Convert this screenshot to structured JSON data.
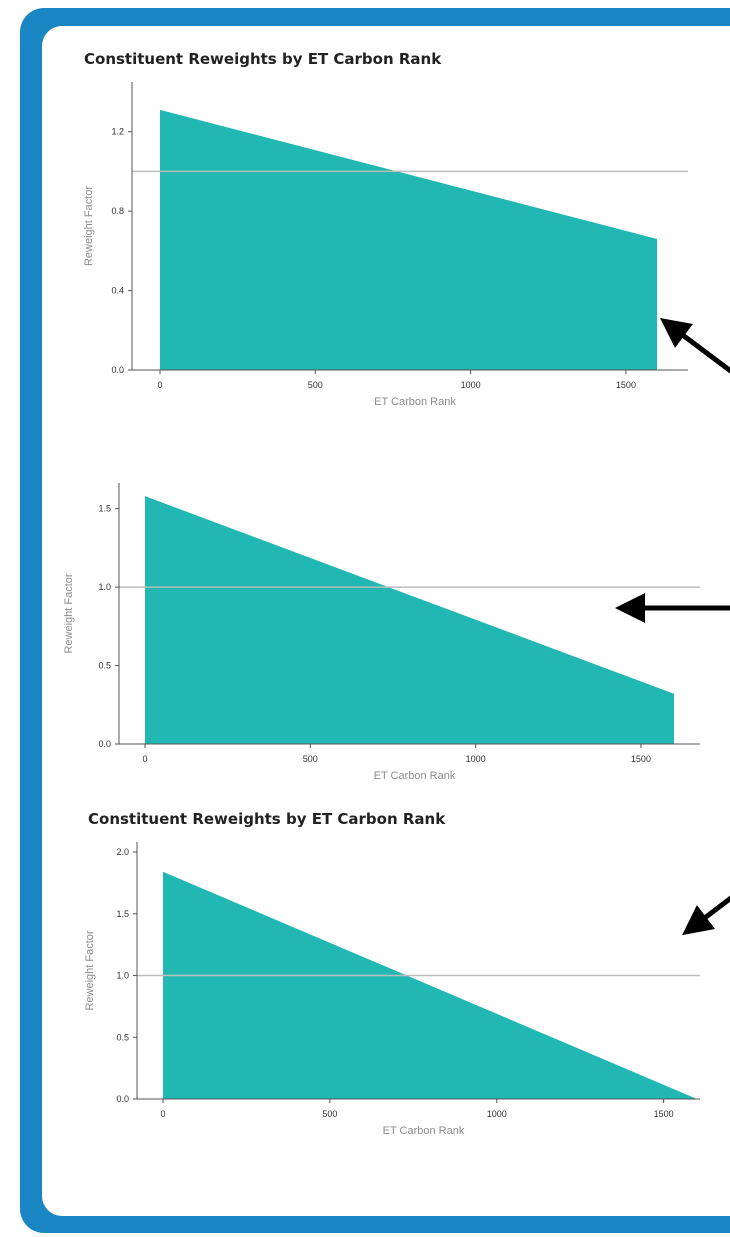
{
  "colors": {
    "frame": "#1a86c4",
    "area": "#21b8b3",
    "refline": "#bdbdbd",
    "axis": "#555555",
    "arrow": "#000000"
  },
  "chart_data": [
    {
      "type": "area",
      "title": "Constituent Reweights by ET Carbon Rank",
      "xlabel": "ET Carbon Rank",
      "ylabel": "Reweight Factor",
      "xlim": [
        0,
        1600
      ],
      "ylim": [
        0,
        1.4
      ],
      "xticks": [
        "0",
        "500",
        "1000",
        "1500"
      ],
      "yticks": [
        "0.0",
        "0.4",
        "0.8",
        "1.2"
      ],
      "x": [
        0,
        1600
      ],
      "y": [
        1.31,
        0.66
      ],
      "reference_line": 1.0,
      "grid": false
    },
    {
      "type": "area",
      "title": "",
      "xlabel": "ET Carbon Rank",
      "ylabel": "Reweight Factor",
      "xlim": [
        0,
        1600
      ],
      "ylim": [
        0,
        1.6
      ],
      "xticks": [
        "0",
        "500",
        "1000",
        "1500"
      ],
      "yticks": [
        "0.0",
        "0.5",
        "1.0",
        "1.5"
      ],
      "x": [
        0,
        1600
      ],
      "y": [
        1.58,
        0.32
      ],
      "reference_line": 1.0,
      "grid": false
    },
    {
      "type": "area",
      "title": "Constituent Reweights by ET Carbon Rank",
      "xlabel": "ET Carbon Rank",
      "ylabel": "Reweight Factor",
      "xlim": [
        0,
        1600
      ],
      "ylim": [
        0,
        2.0
      ],
      "xticks": [
        "0",
        "500",
        "1000",
        "1500"
      ],
      "yticks": [
        "0.0",
        "0.5",
        "1.0",
        "1.5",
        "2.0"
      ],
      "x": [
        0,
        1600
      ],
      "y": [
        1.84,
        0.0
      ],
      "reference_line": 1.0,
      "grid": false
    }
  ]
}
